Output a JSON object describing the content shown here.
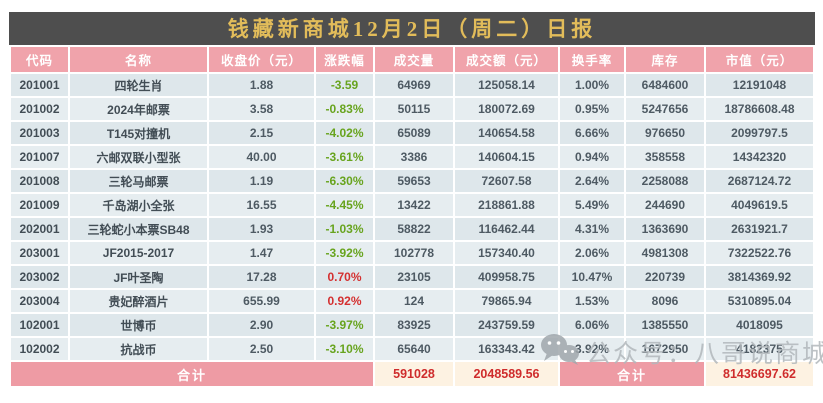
{
  "chart_data": {
    "type": "table",
    "title": "钱藏新商城12月2日（周二）日报",
    "columns": [
      "代码",
      "名称",
      "收盘价（元）",
      "涨跌幅",
      "成交量",
      "成交额（元）",
      "换手率",
      "库存",
      "市值（元）"
    ],
    "rows": [
      [
        "201001",
        "四轮生肖",
        "1.88",
        "-3.59",
        "64969",
        "125058.14",
        "1.00%",
        "6484600",
        "12191048"
      ],
      [
        "201002",
        "2024年邮票",
        "3.58",
        "-0.83%",
        "50115",
        "180072.69",
        "0.95%",
        "5247656",
        "18786608.48"
      ],
      [
        "201003",
        "T145对撞机",
        "2.15",
        "-4.02%",
        "65089",
        "140654.58",
        "6.66%",
        "976650",
        "2099797.5"
      ],
      [
        "201007",
        "六邮双联小型张",
        "40.00",
        "-3.61%",
        "3386",
        "140604.15",
        "0.94%",
        "358558",
        "14342320"
      ],
      [
        "201008",
        "三轮马邮票",
        "1.19",
        "-6.30%",
        "59653",
        "72607.58",
        "2.64%",
        "2258088",
        "2687124.72"
      ],
      [
        "201009",
        "千岛湖小全张",
        "16.55",
        "-4.45%",
        "13422",
        "218861.88",
        "5.49%",
        "244690",
        "4049619.5"
      ],
      [
        "202001",
        "三轮蛇小本票SB48",
        "1.93",
        "-1.03%",
        "58822",
        "116462.44",
        "4.31%",
        "1363690",
        "2631921.7"
      ],
      [
        "203001",
        "JF2015-2017",
        "1.47",
        "-3.92%",
        "102778",
        "157340.40",
        "2.06%",
        "4981308",
        "7322522.76"
      ],
      [
        "203002",
        "JF叶圣陶",
        "17.28",
        "0.70%",
        "23105",
        "409958.75",
        "10.47%",
        "220739",
        "3814369.92"
      ],
      [
        "203004",
        "贵妃醉酒片",
        "655.99",
        "0.92%",
        "124",
        "79865.94",
        "1.53%",
        "8096",
        "5310895.04"
      ],
      [
        "102001",
        "世博币",
        "2.90",
        "-3.97%",
        "83925",
        "243759.59",
        "6.06%",
        "1385550",
        "4018095"
      ],
      [
        "102002",
        "抗战币",
        "2.50",
        "-3.10%",
        "65640",
        "163343.42",
        "3.92%",
        "1672950",
        "4182375"
      ]
    ],
    "total": {
      "label_left": "合计",
      "volume": "591028",
      "turnover": "2048589.56",
      "label_right": "合计",
      "market_value": "81436697.62"
    },
    "layout": {
      "grid": "white 2px separators",
      "legend": "none"
    }
  },
  "watermark": {
    "text": "公众号：八哥说商城",
    "icon": "wechat-icon"
  },
  "colors": {
    "title_bg": "#4e4e4e",
    "title_text": "#e2bc5a",
    "header_bg": "#f0a3ab",
    "row_bg": "#dee7eb",
    "row_alt_bg": "#e6edf0",
    "change_up_red": "#d43030",
    "change_down_green": "#68a41e",
    "total_label_bg": "#ee9ba4",
    "total_num_bg": "#fdf2e2",
    "total_num_red": "#cf2c2c",
    "watermark_gray": "#b2b8bc"
  }
}
